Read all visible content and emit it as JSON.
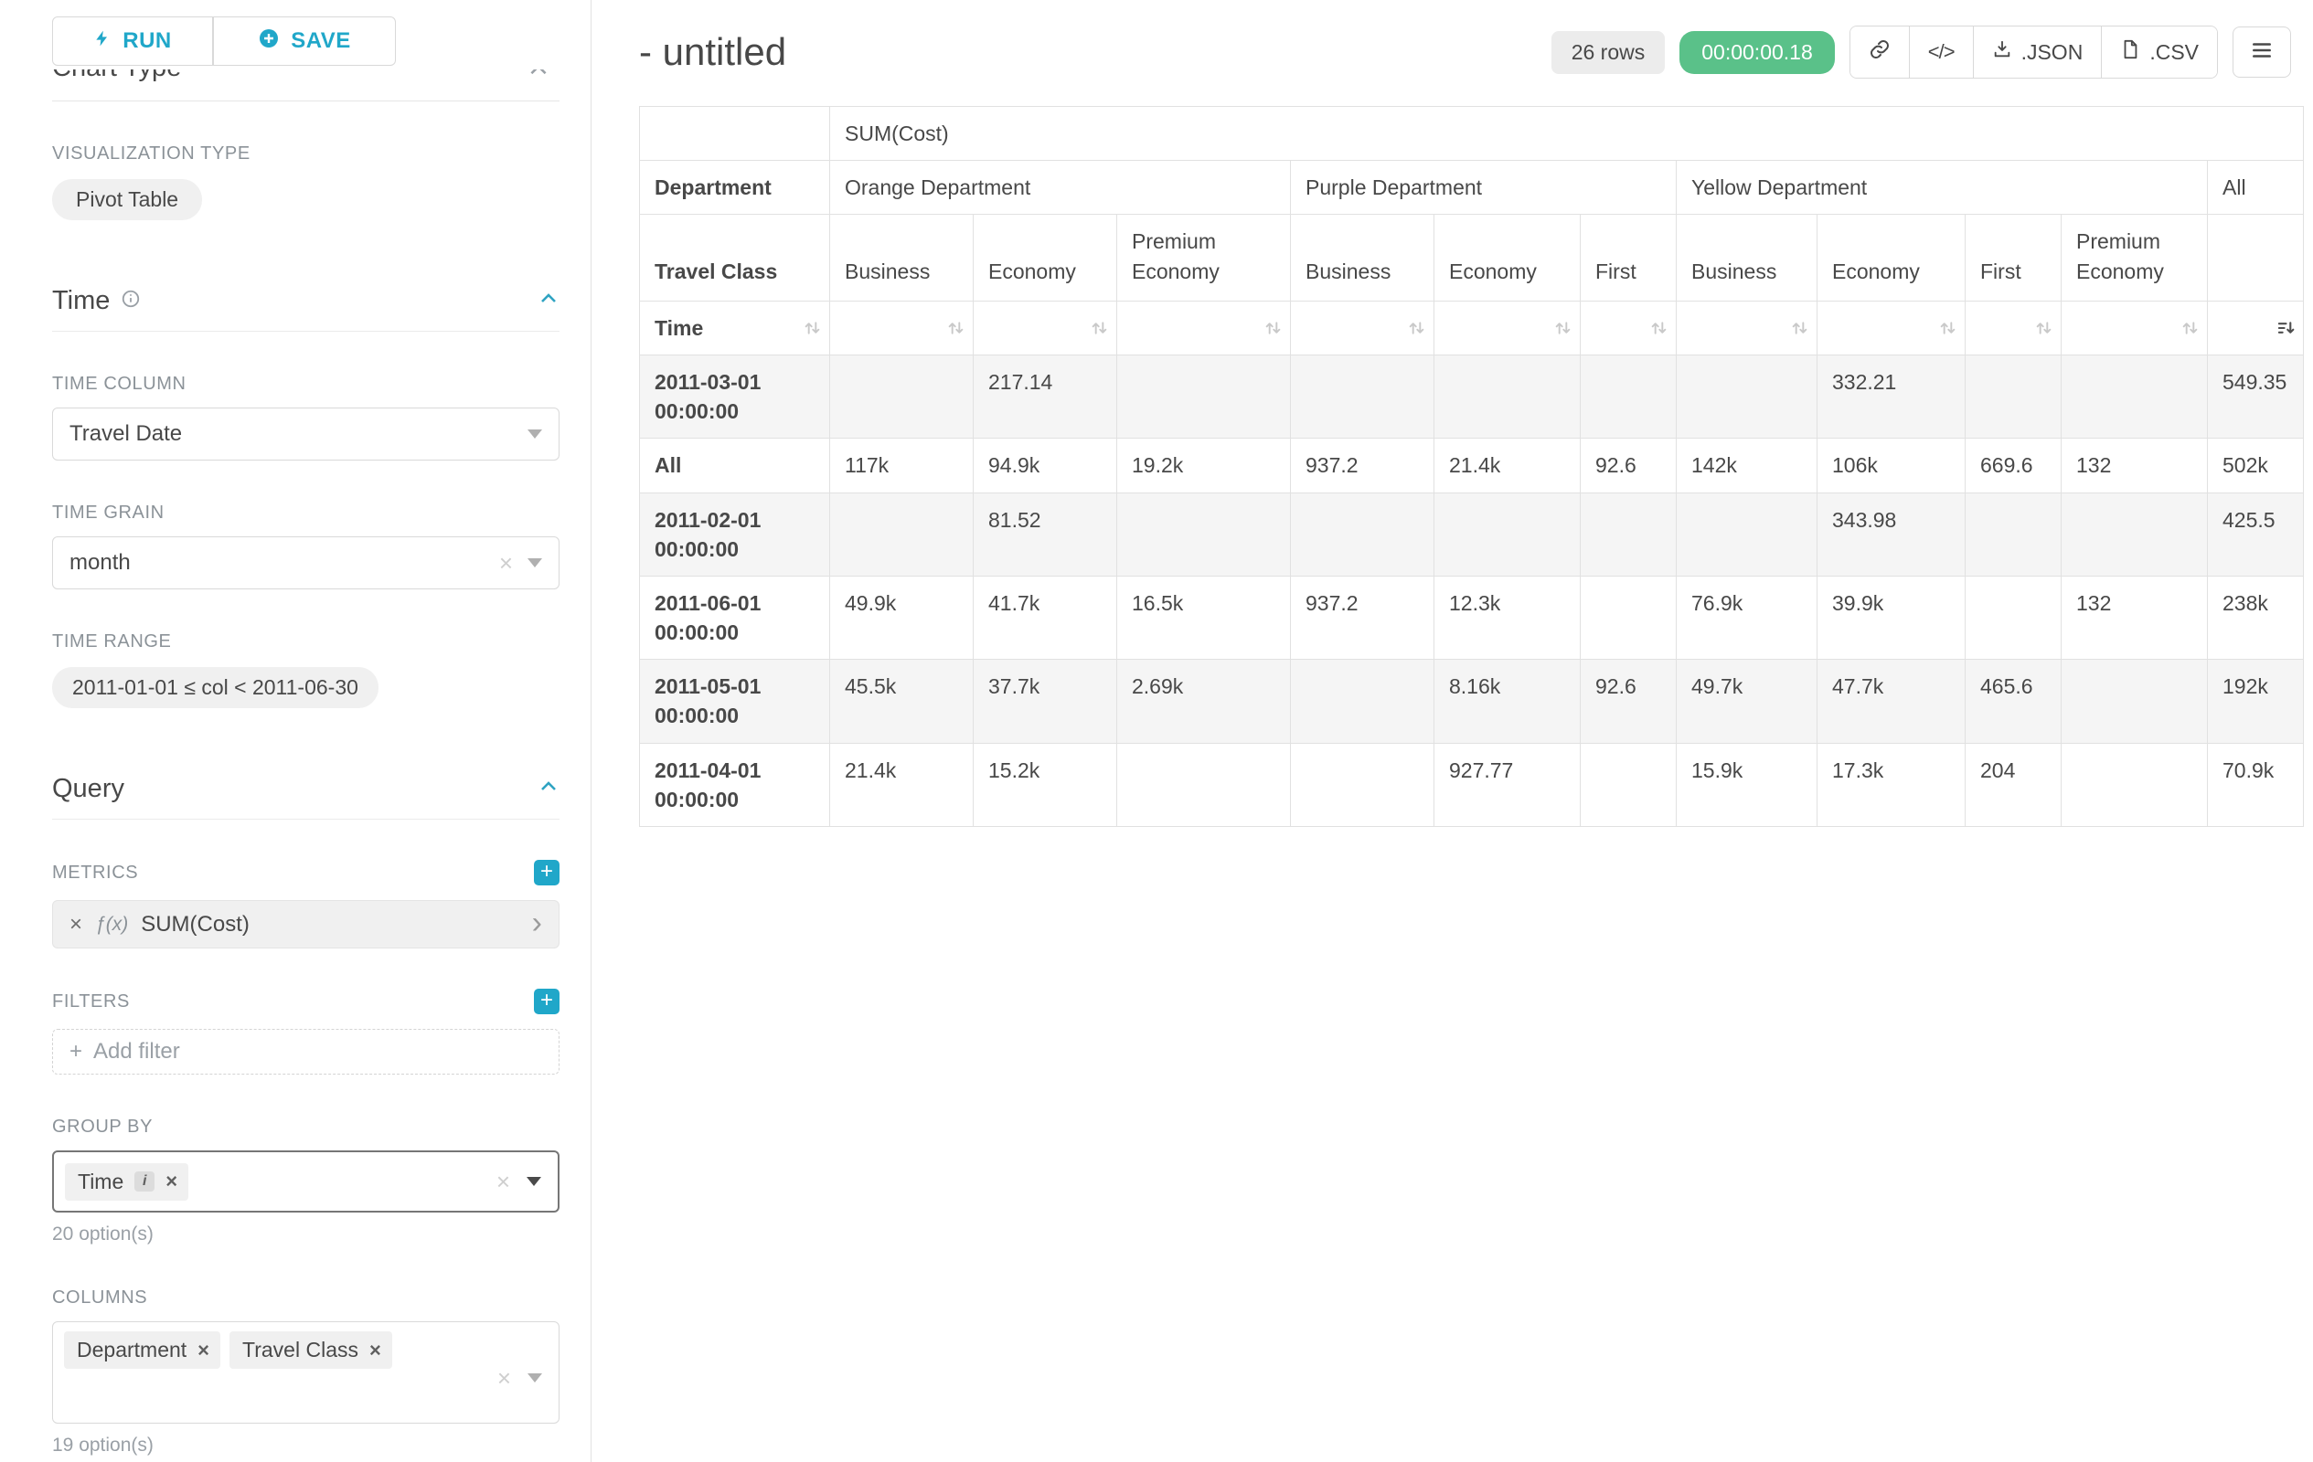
{
  "icons": {
    "close": "×",
    "plus": "+",
    "code": "</>",
    "chevron_right": "›",
    "fx": "ƒ(x)",
    "run": "bolt",
    "save": "plus-circle",
    "info": "info-circle",
    "collapse": "chevron-up",
    "caret": "caret-down",
    "link": "chain-link",
    "json_download": "download-file",
    "csv_file": "file-sheet",
    "menu": "hamburger",
    "sort": "up-down-arrows",
    "sort_desc_active": "sort-amount-down"
  },
  "sidebar": {
    "run_label": "RUN",
    "save_label": "SAVE",
    "chart_type_heading": "Chart Type",
    "visualization_type_label": "VISUALIZATION TYPE",
    "visualization_type_value": "Pivot Table",
    "time_section": {
      "heading": "Time",
      "time_column_label": "TIME COLUMN",
      "time_column_value": "Travel Date",
      "time_grain_label": "TIME GRAIN",
      "time_grain_value": "month",
      "time_range_label": "TIME RANGE",
      "time_range_value": "2011-01-01 ≤ col < 2011-06-30"
    },
    "query_section": {
      "heading": "Query",
      "metrics_label": "METRICS",
      "metric_value": "SUM(Cost)",
      "filters_label": "FILTERS",
      "add_filter_label": "Add filter",
      "group_by_label": "GROUP BY",
      "group_by_values": [
        "Time"
      ],
      "group_by_options_hint": "20 option(s)",
      "columns_label": "COLUMNS",
      "columns_values": [
        "Department",
        "Travel Class"
      ],
      "columns_options_hint": "19 option(s)"
    }
  },
  "header": {
    "title": "- untitled",
    "rows_badge": "26 rows",
    "timer_badge": "00:00:00.18",
    "json_label": ".JSON",
    "csv_label": ".CSV"
  },
  "chart_data": {
    "type": "table",
    "metric_header": "SUM(Cost)",
    "row_dim": "Time",
    "col_dims": [
      "Department",
      "Travel Class"
    ],
    "col_groups": [
      {
        "label": "Orange Department",
        "children": [
          "Business",
          "Economy",
          "Premium Economy"
        ]
      },
      {
        "label": "Purple Department",
        "children": [
          "Business",
          "Economy",
          "First"
        ]
      },
      {
        "label": "Yellow Department",
        "children": [
          "Business",
          "Economy",
          "First",
          "Premium Economy"
        ]
      },
      {
        "label": "All",
        "children": [
          ""
        ]
      }
    ],
    "rows": [
      {
        "label": "2011-03-01 00:00:00",
        "values": [
          "",
          "217.14",
          "",
          "",
          "",
          "",
          "",
          "332.21",
          "",
          "",
          "549.35"
        ]
      },
      {
        "label": "All",
        "values": [
          "117k",
          "94.9k",
          "19.2k",
          "937.2",
          "21.4k",
          "92.6",
          "142k",
          "106k",
          "669.6",
          "132",
          "502k"
        ]
      },
      {
        "label": "2011-02-01 00:00:00",
        "values": [
          "",
          "81.52",
          "",
          "",
          "",
          "",
          "",
          "343.98",
          "",
          "",
          "425.5"
        ]
      },
      {
        "label": "2011-06-01 00:00:00",
        "values": [
          "49.9k",
          "41.7k",
          "16.5k",
          "937.2",
          "12.3k",
          "",
          "76.9k",
          "39.9k",
          "",
          "132",
          "238k"
        ]
      },
      {
        "label": "2011-05-01 00:00:00",
        "values": [
          "45.5k",
          "37.7k",
          "2.69k",
          "",
          "8.16k",
          "92.6",
          "49.7k",
          "47.7k",
          "465.6",
          "",
          "192k"
        ]
      },
      {
        "label": "2011-04-01 00:00:00",
        "values": [
          "21.4k",
          "15.2k",
          "",
          "",
          "927.77",
          "",
          "15.9k",
          "17.3k",
          "204",
          "",
          "70.9k"
        ]
      }
    ],
    "sort_state": {
      "column": "All",
      "direction": "desc"
    }
  }
}
